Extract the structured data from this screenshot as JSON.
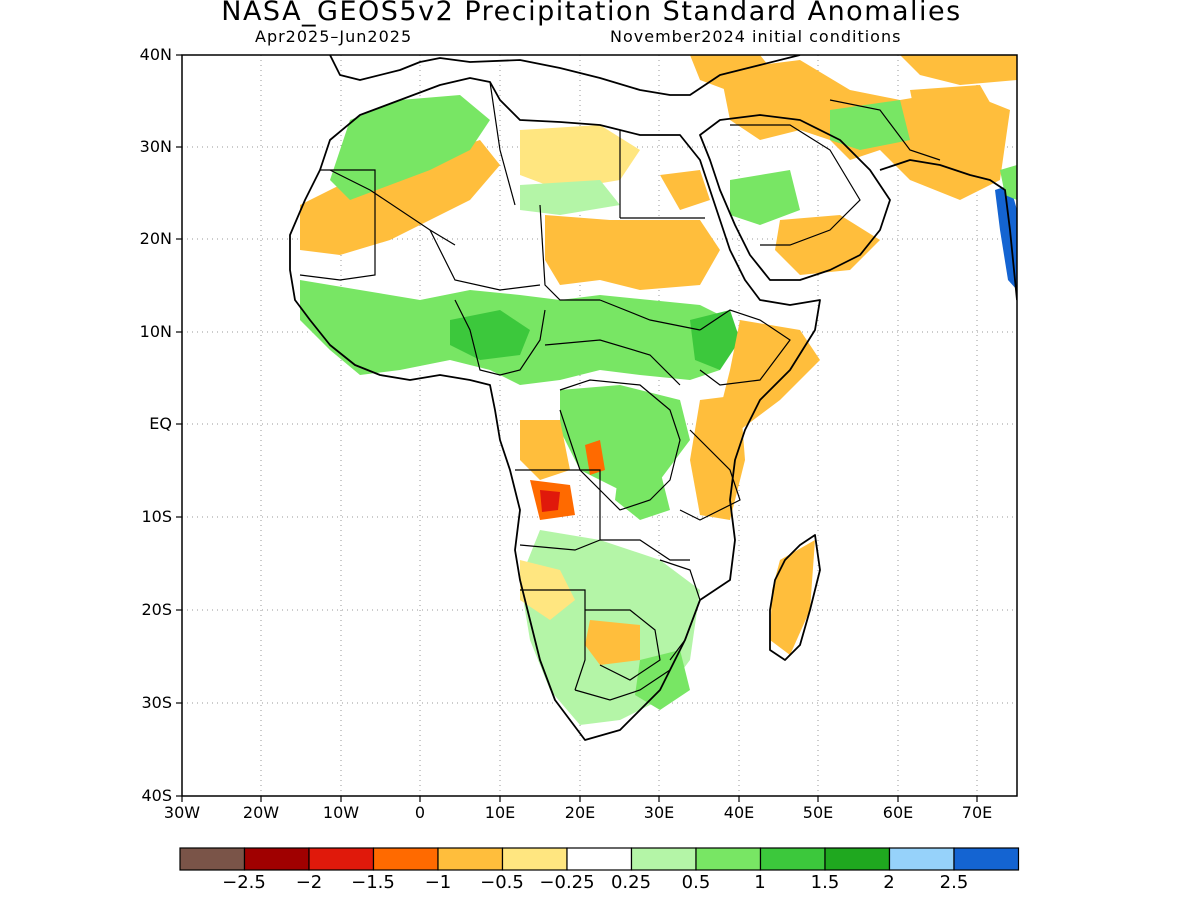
{
  "title": "NASA_GEOS5v2 Precipitation Standard Anomalies",
  "subtitle_left": "Apr2025–Jun2025",
  "subtitle_right": "November2024 initial conditions",
  "lat_labels": [
    "40N",
    "30N",
    "20N",
    "10N",
    "EQ",
    "10S",
    "20S",
    "30S",
    "40S"
  ],
  "lon_labels": [
    "30W",
    "20W",
    "10W",
    "0",
    "10E",
    "20E",
    "30E",
    "40E",
    "50E",
    "60E",
    "70E"
  ],
  "colorbar": {
    "colors": [
      "#7a5448",
      "#a00000",
      "#e0190b",
      "#ff6a00",
      "#ffbe3c",
      "#ffe680",
      "#ffffff",
      "#b4f5a7",
      "#78e664",
      "#3cc83c",
      "#1fa81f",
      "#96d2fa",
      "#1464d2"
    ],
    "labels": [
      "−2.5",
      "−2",
      "−1.5",
      "−1",
      "−0.5",
      "−0.25",
      "0.25",
      "0.5",
      "1",
      "1.5",
      "2",
      "2.5"
    ]
  }
}
